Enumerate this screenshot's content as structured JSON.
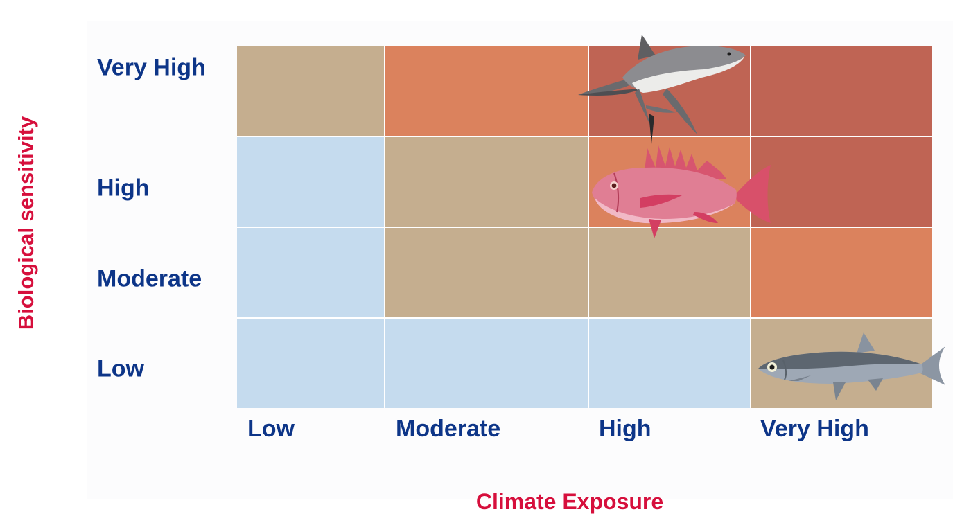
{
  "y_axis_title": "Biological sensitivity",
  "x_axis_title": "Climate Exposure",
  "rows": [
    "Very High",
    "High",
    "Moderate",
    "Low"
  ],
  "columns": [
    "Low",
    "Moderate",
    "High",
    "Very High"
  ],
  "colors": {
    "low": "#c5dbee",
    "moderate": "#c5ae8f",
    "high": "#db825d",
    "very_high": "#bf6454",
    "axis_title": "#d60f3c",
    "labels": "#0d3588"
  },
  "matrix": [
    [
      "moderate",
      "high",
      "very_high",
      "very_high"
    ],
    [
      "low",
      "moderate",
      "high",
      "very_high"
    ],
    [
      "low",
      "moderate",
      "moderate",
      "high"
    ],
    [
      "low",
      "low",
      "low",
      "moderate"
    ]
  ],
  "illustrations": [
    {
      "icon": "shark-icon",
      "row": "Very High",
      "column": "High"
    },
    {
      "icon": "red-snapper-icon",
      "row": "High",
      "column": "High"
    },
    {
      "icon": "herring-icon",
      "row": "Low",
      "column": "Very High"
    }
  ]
}
